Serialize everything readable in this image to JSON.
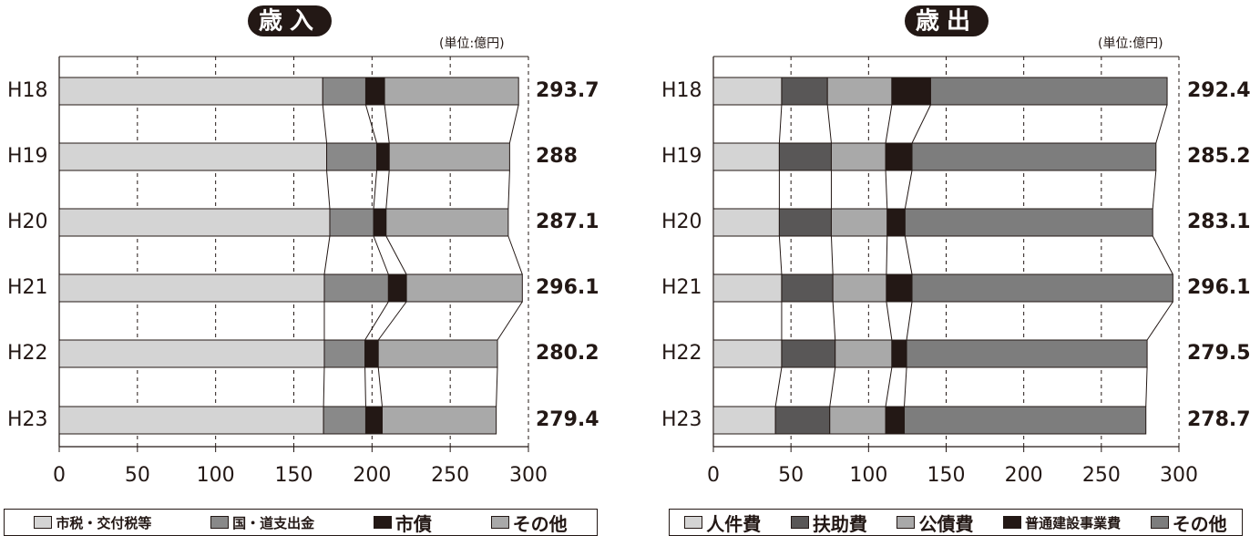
{
  "chart_data": [
    {
      "type": "bar",
      "stacked": true,
      "orientation": "horizontal",
      "title": "歳入",
      "unit_label": "(単位:億円)",
      "categories": [
        "H18",
        "H19",
        "H20",
        "H21",
        "H22",
        "H23"
      ],
      "series": [
        {
          "name": "市税・交付税等",
          "values": [
            168.5,
            171.0,
            173.0,
            169.5,
            169.5,
            169.0
          ],
          "color": "#d4d4d4"
        },
        {
          "name": "国・道支出金",
          "values": [
            27.5,
            32.0,
            28.0,
            41.0,
            26.0,
            27.0
          ],
          "color": "#898989"
        },
        {
          "name": "市債",
          "values": [
            12.0,
            8.0,
            8.0,
            11.5,
            8.5,
            10.5
          ],
          "color": "#231815"
        },
        {
          "name": "その他",
          "values": [
            85.7,
            77.0,
            78.1,
            74.1,
            76.2,
            72.9
          ],
          "color": "#a9a9a9"
        }
      ],
      "totals": [
        "293.7",
        "288",
        "287.1",
        "296.1",
        "280.2",
        "279.4"
      ],
      "xlim": [
        0,
        300
      ],
      "xticks": [
        "0",
        "50",
        "100",
        "150",
        "200",
        "250",
        "300"
      ],
      "grid": true,
      "legend_position": "bottom"
    },
    {
      "type": "bar",
      "stacked": true,
      "orientation": "horizontal",
      "title": "歳出",
      "unit_label": "(単位:億円)",
      "categories": [
        "H18",
        "H19",
        "H20",
        "H21",
        "H22",
        "H23"
      ],
      "series": [
        {
          "name": "人件費",
          "values": [
            44.0,
            42.5,
            42.5,
            44.0,
            44.0,
            40.0
          ],
          "color": "#d4d4d4"
        },
        {
          "name": "扶助費",
          "values": [
            29.5,
            33.5,
            33.5,
            33.0,
            34.5,
            35.0
          ],
          "color": "#595757"
        },
        {
          "name": "公債費",
          "values": [
            41.5,
            35.0,
            36.0,
            34.5,
            36.5,
            36.0
          ],
          "color": "#a9a9a9"
        },
        {
          "name": "普通建設事業費",
          "values": [
            25.0,
            17.0,
            11.5,
            16.5,
            9.5,
            12.0
          ],
          "color": "#231815"
        },
        {
          "name": "その他",
          "values": [
            152.4,
            157.2,
            159.6,
            168.1,
            155.0,
            155.7
          ],
          "color": "#7d7d7d"
        }
      ],
      "totals": [
        "292.4",
        "285.2",
        "283.1",
        "296.1",
        "279.5",
        "278.7"
      ],
      "xlim": [
        0,
        300
      ],
      "xticks": [
        "0",
        "50",
        "100",
        "150",
        "200",
        "250",
        "300"
      ],
      "grid": true,
      "legend_position": "bottom"
    }
  ]
}
